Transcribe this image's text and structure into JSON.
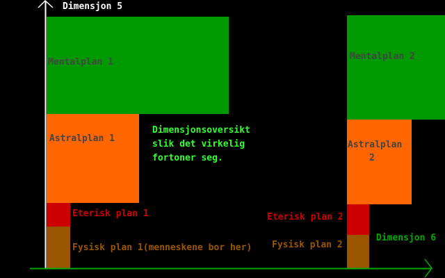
{
  "colors": {
    "background": "#000000",
    "mental": "#009900",
    "astral": "#ff6600",
    "eterisk": "#cc0000",
    "fysisk": "#995500",
    "box_text": "#444444",
    "caption": "#33ff33",
    "x_axis": "#00aa00",
    "y_axis": "#ffffff"
  },
  "axes": {
    "y_label": "Dimensjon 5",
    "x_label": "Dimensjon 6"
  },
  "dimension1": {
    "mental": "Mentalplan 1",
    "astral": "Astralplan 1",
    "eterisk": "Eterisk plan 1",
    "fysisk": "Fysisk plan 1(menneskene bor her)"
  },
  "dimension2": {
    "mental": "Mentalplan 2",
    "astral_line1": "Astralplan",
    "astral_line2": "2",
    "eterisk": "Eterisk plan 2",
    "fysisk": "Fysisk plan 2"
  },
  "caption": {
    "line1": "Dimensjonsoversikt",
    "line2": "slik det virkelig",
    "line3": "fortoner seg."
  }
}
